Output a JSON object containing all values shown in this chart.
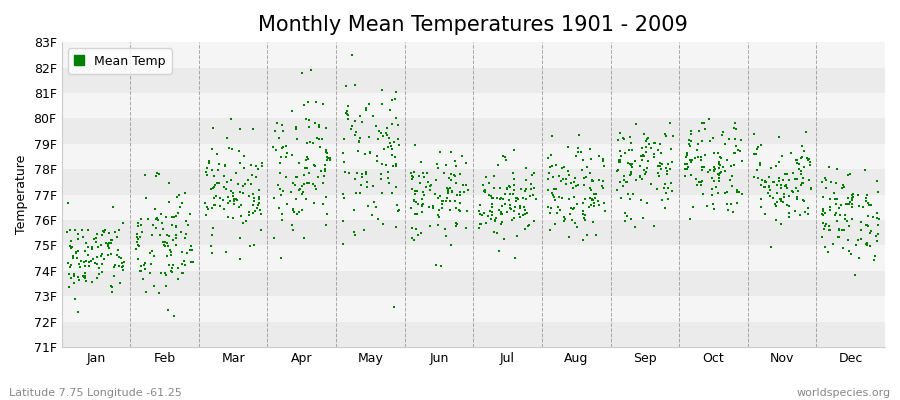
{
  "title": "Monthly Mean Temperatures 1901 - 2009",
  "ylabel": "Temperature",
  "xlabel_labels": [
    "Jan",
    "Feb",
    "Mar",
    "Apr",
    "May",
    "Jun",
    "Jul",
    "Aug",
    "Sep",
    "Oct",
    "Nov",
    "Dec"
  ],
  "ytick_labels": [
    "71F",
    "72F",
    "73F",
    "74F",
    "75F",
    "76F",
    "77F",
    "78F",
    "79F",
    "80F",
    "81F",
    "82F",
    "83F"
  ],
  "ytick_values": [
    71,
    72,
    73,
    74,
    75,
    76,
    77,
    78,
    79,
    80,
    81,
    82,
    83
  ],
  "ylim": [
    71,
    83
  ],
  "marker_color": "#008000",
  "marker": "s",
  "marker_size": 2,
  "legend_label": "Mean Temp",
  "subtitle_left": "Latitude 7.75 Longitude -61.25",
  "subtitle_right": "worldspecies.org",
  "bg_color": "#ffffff",
  "plot_bg_color": "#ffffff",
  "band_color_light": "#ebebeb",
  "band_color_dark": "#f5f5f5",
  "grid_color": "#e8e8e8",
  "dashed_line_color": "#888888",
  "title_fontsize": 15,
  "label_fontsize": 9,
  "tick_fontsize": 9,
  "seed": 42,
  "n_years": 109,
  "monthly_means": [
    74.5,
    75.0,
    77.2,
    78.2,
    78.5,
    76.8,
    76.8,
    77.0,
    78.0,
    78.2,
    77.5,
    76.2
  ],
  "monthly_stds": [
    0.8,
    1.3,
    1.0,
    1.4,
    1.7,
    0.9,
    0.8,
    0.9,
    1.0,
    1.0,
    0.9,
    0.9
  ]
}
